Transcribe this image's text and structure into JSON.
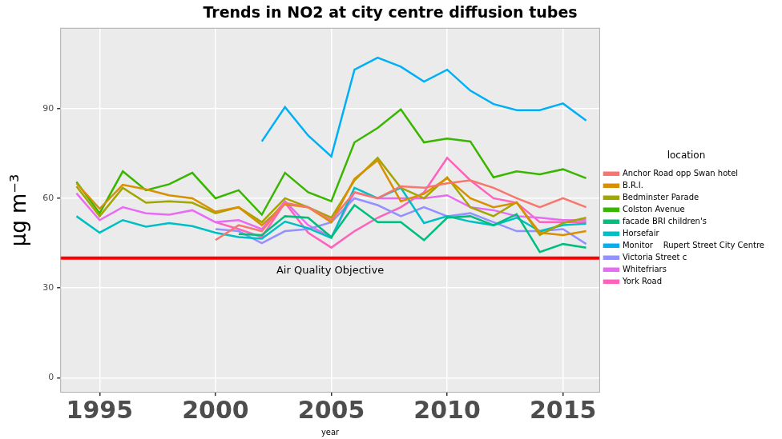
{
  "chart_data": {
    "type": "line",
    "title": "Trends in NO2 at city centre diffusion tubes",
    "x_label": "year",
    "y_label": "µg m⁻³",
    "x": [
      1994,
      1995,
      1996,
      1997,
      1998,
      1999,
      2000,
      2001,
      2002,
      2003,
      2004,
      2005,
      2006,
      2007,
      2008,
      2009,
      2010,
      2011,
      2012,
      2013,
      2014,
      2015,
      2016
    ],
    "series": [
      {
        "name": "Anchor Road opp Swan hotel",
        "color": "#F8766D",
        "values": [
          null,
          null,
          null,
          null,
          null,
          null,
          46,
          51,
          49,
          58.5,
          57,
          52.7,
          62,
          60,
          64,
          63.5,
          65,
          66,
          63.5,
          60,
          57,
          60,
          57
        ]
      },
      {
        "name": "B.R.I.",
        "color": "#D89000",
        "values": [
          65,
          56.5,
          64.5,
          63,
          61,
          60,
          55.5,
          57,
          51,
          58,
          57,
          52,
          66.5,
          72.7,
          59,
          61.5,
          66.7,
          60,
          57,
          58.5,
          48.5,
          47.7,
          49
        ]
      },
      {
        "name": "Bedminster Parade",
        "color": "#A3A500",
        "values": [
          64,
          54,
          63.5,
          58.5,
          59,
          58.5,
          55,
          57,
          52,
          60,
          57,
          53.5,
          66,
          73.5,
          63.5,
          60,
          67,
          57,
          54,
          58.7,
          47.7,
          51.7,
          53.5
        ]
      },
      {
        "name": "Colston Avenue",
        "color": "#39B600",
        "values": [
          65.5,
          55,
          69,
          62.7,
          64.7,
          68.5,
          60,
          62.7,
          54.5,
          68.5,
          62,
          59,
          78.7,
          83.5,
          89.7,
          78.7,
          80,
          79,
          67,
          69,
          68,
          69.7,
          66.7
        ]
      },
      {
        "name": "facade BRI children's",
        "color": "#00BF7D",
        "values": [
          null,
          null,
          null,
          null,
          null,
          null,
          null,
          48,
          47.7,
          54,
          53.5,
          47,
          57.7,
          52,
          52,
          46,
          53.5,
          54,
          51,
          54.7,
          42,
          44.7,
          43.5
        ]
      },
      {
        "name": "Horsefair",
        "color": "#00BFC4",
        "values": [
          54,
          48.5,
          52.7,
          50.5,
          51.7,
          50.7,
          48.5,
          47,
          46.5,
          52.2,
          50,
          46.7,
          63.5,
          60,
          63.5,
          51.7,
          54,
          52.2,
          51,
          53.5,
          49,
          51,
          51.5
        ]
      },
      {
        "name": "Monitor    Rupert Street City Centre",
        "color": "#00B0F6",
        "values": [
          null,
          null,
          null,
          null,
          null,
          null,
          null,
          null,
          79,
          90.5,
          81,
          74,
          103,
          107,
          104,
          99,
          103,
          96,
          91.5,
          89.5,
          89.5,
          91.7,
          86
        ]
      },
      {
        "name": "Victoria Street c",
        "color": "#9590FF",
        "values": [
          null,
          null,
          null,
          null,
          null,
          null,
          49.7,
          49,
          45,
          49,
          49.7,
          52,
          60,
          57.7,
          54,
          57,
          54,
          55,
          52,
          49,
          49,
          49.7,
          44.7
        ]
      },
      {
        "name": "Whitefriars",
        "color": "#E76BF3",
        "values": [
          61.7,
          52.7,
          57,
          55,
          54.5,
          56,
          52,
          52.7,
          49.7,
          59,
          51,
          47,
          62,
          60,
          60,
          60,
          61,
          57,
          56,
          54,
          53.5,
          52.7,
          52.7
        ]
      },
      {
        "name": "York Road",
        "color": "#FF62BC",
        "values": [
          null,
          null,
          null,
          null,
          null,
          null,
          52,
          49.7,
          47,
          58.5,
          48.5,
          43.5,
          49,
          53.5,
          57,
          62,
          73.5,
          66,
          60,
          58.5,
          52,
          52,
          52
        ]
      }
    ],
    "xlim": [
      1993.3,
      2016.6
    ],
    "xticks": [
      1995,
      2000,
      2005,
      2010,
      2015
    ],
    "ylim": [
      -5,
      117
    ],
    "yticks": [
      0,
      30,
      60,
      90
    ],
    "grid": true,
    "legend": "right",
    "legend_title": "location",
    "annotations": [
      {
        "y": 40,
        "text": "Air Quality Objective",
        "color": "#FF0000"
      }
    ]
  }
}
